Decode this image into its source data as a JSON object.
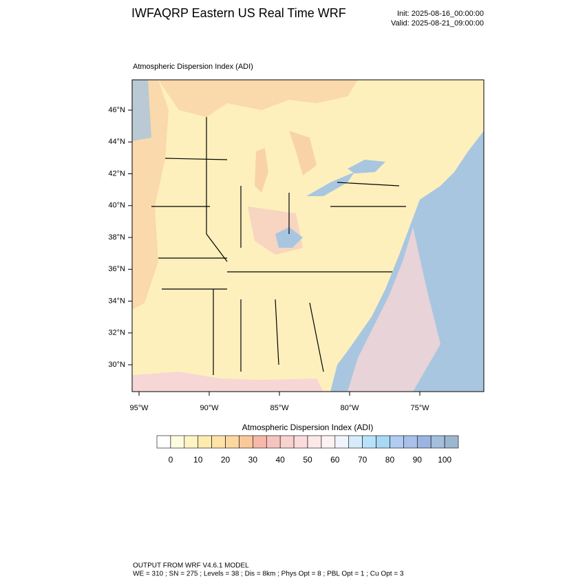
{
  "header": {
    "title": "IWFAQRP Eastern US Real Time WRF",
    "init": "Init: 2025-08-16_00:00:00",
    "valid": "Valid: 2025-08-21_09:00:00"
  },
  "map": {
    "title": "Atmospheric Dispersion Index   (ADI)",
    "lat_labels": [
      "46°N",
      "44°N",
      "42°N",
      "40°N",
      "38°N",
      "36°N",
      "34°N",
      "32°N",
      "30°N"
    ],
    "lon_labels": [
      "95°W",
      "90°W",
      "85°W",
      "80°W",
      "75°W"
    ]
  },
  "colorbar": {
    "title": "Atmospheric Dispersion Index  (ADI)",
    "ticks": [
      0,
      10,
      20,
      30,
      40,
      50,
      60,
      70,
      80,
      90,
      100
    ]
  },
  "footer": {
    "line1": "OUTPUT FROM WRF V4.6.1 MODEL",
    "line2": "WE = 310 ; SN = 275 ; Levels = 38 ; Dis = 8km ; Phys Opt = 8 ; PBL Opt = 1 ; Cu Opt = 3"
  }
}
